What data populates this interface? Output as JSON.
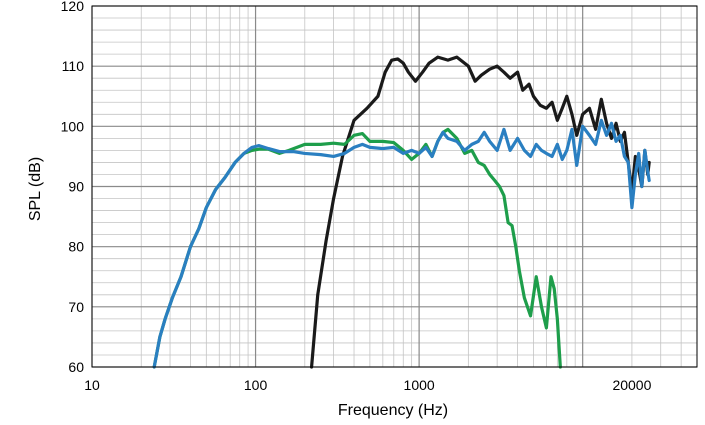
{
  "chart_data": {
    "type": "line",
    "xlabel": "Frequency (Hz)",
    "ylabel": "SPL (dB)",
    "x_scale": "log",
    "xlim": [
      10,
      50000
    ],
    "ylim": [
      60,
      120
    ],
    "x_ticks": [
      {
        "value": 10,
        "label": "10"
      },
      {
        "value": 100,
        "label": "100"
      },
      {
        "value": 1000,
        "label": "1000"
      },
      {
        "value": 20000,
        "label": "20000"
      }
    ],
    "y_ticks": [
      60,
      70,
      80,
      90,
      100,
      110,
      120
    ],
    "grid": true,
    "series": [
      {
        "color": "#1a1a1a",
        "x": [
          220,
          240,
          270,
          300,
          340,
          400,
          480,
          560,
          620,
          680,
          740,
          800,
          860,
          950,
          1050,
          1150,
          1300,
          1500,
          1700,
          2000,
          2200,
          2400,
          2700,
          3000,
          3300,
          3600,
          4000,
          4300,
          4700,
          5000,
          5500,
          6000,
          6500,
          7000,
          7500,
          8000,
          8600,
          9200,
          10000,
          11000,
          12000,
          13000,
          14000,
          15000,
          16000,
          17000,
          18000,
          19000,
          20000,
          21000,
          22000,
          23000,
          24000,
          25000,
          25500
        ],
        "values": [
          60,
          72,
          81,
          88,
          95,
          101,
          103,
          105,
          109,
          111,
          111.2,
          110.5,
          109,
          107.5,
          109,
          110.5,
          111.5,
          111,
          111.5,
          110,
          107.5,
          108.5,
          109.5,
          110,
          109,
          108,
          109,
          106,
          107,
          105,
          103.5,
          103,
          104,
          101,
          103,
          105,
          102,
          98.5,
          102,
          103,
          99.5,
          104.5,
          100.5,
          98,
          100.5,
          97.5,
          99,
          94,
          89,
          95,
          93,
          90,
          96,
          92,
          94
        ]
      },
      {
        "color": "#1e9e4b",
        "x": [
          24,
          26,
          28,
          31,
          35,
          40,
          45,
          50,
          57,
          65,
          75,
          85,
          95,
          105,
          120,
          140,
          160,
          200,
          250,
          300,
          350,
          400,
          450,
          500,
          600,
          700,
          800,
          900,
          1000,
          1100,
          1200,
          1300,
          1400,
          1500,
          1700,
          1900,
          2100,
          2300,
          2500,
          2700,
          2900,
          3100,
          3300,
          3500,
          3700,
          3900,
          4100,
          4400,
          4800,
          5200,
          5600,
          6000,
          6400,
          6700,
          7000,
          7300
        ],
        "values": [
          60,
          65,
          68,
          71.5,
          75,
          80,
          83,
          86.5,
          89.5,
          91.5,
          94,
          95.5,
          96,
          96.2,
          96.2,
          95.5,
          96,
          97,
          97,
          97.2,
          97,
          98.5,
          98.8,
          97.5,
          97.5,
          97.3,
          96,
          94.5,
          95.5,
          97,
          95,
          97.5,
          99,
          99.5,
          98,
          95.5,
          96,
          94,
          93.5,
          92,
          91,
          90,
          88.5,
          84,
          83.5,
          80,
          76,
          71.5,
          68.5,
          75,
          70,
          66.5,
          75,
          73,
          68,
          60
        ]
      },
      {
        "color": "#2a7fc1",
        "x": [
          24,
          26,
          28,
          31,
          35,
          40,
          45,
          50,
          57,
          65,
          75,
          85,
          95,
          105,
          120,
          140,
          170,
          200,
          250,
          300,
          350,
          400,
          450,
          500,
          600,
          700,
          800,
          900,
          1000,
          1100,
          1200,
          1300,
          1400,
          1500,
          1700,
          1900,
          2100,
          2300,
          2500,
          2700,
          3000,
          3300,
          3600,
          4000,
          4400,
          4800,
          5200,
          5600,
          6000,
          6500,
          7000,
          7500,
          8000,
          8600,
          9200,
          10000,
          11000,
          12000,
          13000,
          14000,
          15000,
          16000,
          17000,
          18000,
          19000,
          20000,
          21000,
          22000,
          23000,
          24000,
          25000,
          25500
        ],
        "values": [
          60,
          65,
          68,
          71.5,
          75,
          80,
          83,
          86.5,
          89.5,
          91.5,
          94,
          95.5,
          96.5,
          96.8,
          96.3,
          95.8,
          95.8,
          95.5,
          95.3,
          95,
          95.5,
          96.5,
          97,
          96.5,
          96.3,
          96.5,
          95.5,
          96,
          95.5,
          96.5,
          95,
          97.5,
          99,
          98,
          97.5,
          96,
          97,
          97.5,
          99,
          97.5,
          96,
          99.5,
          96,
          98,
          96,
          95,
          97,
          96,
          95.5,
          95,
          97,
          94.5,
          96,
          99.5,
          93.5,
          100,
          98.5,
          97,
          101,
          98.5,
          100.5,
          97.5,
          98.5,
          95,
          94,
          86.5,
          92,
          95.5,
          90,
          96,
          92.5,
          91
        ]
      }
    ]
  }
}
